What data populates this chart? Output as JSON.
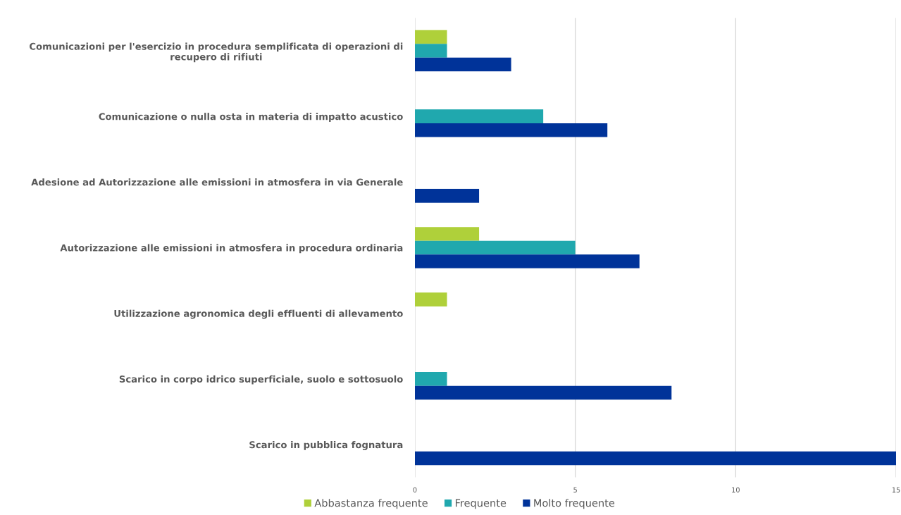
{
  "chart_data": {
    "type": "bar",
    "orientation": "horizontal",
    "categories": [
      "Comunicazioni per l'esercizio in procedura semplificata di operazioni di\nrecupero di rifiuti",
      "Comunicazione o nulla osta in materia di impatto acustico",
      "Adesione ad Autorizzazione alle emissioni in atmosfera in via Generale",
      "Autorizzazione alle emissioni in atmosfera in procedura ordinaria",
      "Utilizzazione agronomica degli effluenti di allevamento",
      "Scarico in corpo idrico superficiale, suolo e sottosuolo",
      "Scarico in pubblica fognatura"
    ],
    "series": [
      {
        "name": "Abbastanza frequente",
        "color": "#afd03a",
        "values": [
          1,
          null,
          null,
          2,
          1,
          null,
          null
        ]
      },
      {
        "name": "Frequente",
        "color": "#20a8ae",
        "values": [
          1,
          4,
          null,
          5,
          null,
          1,
          null
        ]
      },
      {
        "name": "Molto frequente",
        "color": "#003399",
        "values": [
          3,
          6,
          2,
          7,
          null,
          8,
          15
        ]
      }
    ],
    "xlim": [
      0,
      15
    ],
    "xticks": [
      0,
      5,
      10,
      15
    ],
    "grid": "x",
    "legend": "bottom"
  }
}
